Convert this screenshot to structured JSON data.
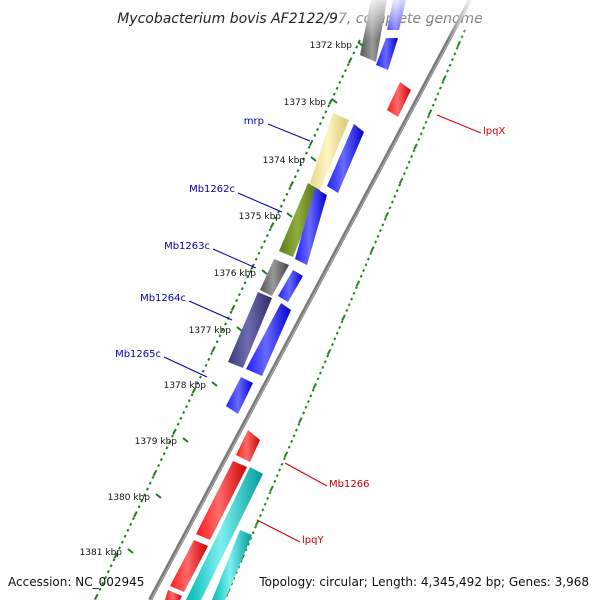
{
  "title": "Mycobacterium bovis AF2122/97, complete genome",
  "footer": {
    "accession": "Accession: NC_002945",
    "topology": "Topology: circular; Length: 4,345,492 bp; Genes: 3,968"
  },
  "colors": {
    "backbone": "#888888",
    "forward_label": "#cc0000",
    "reverse_label": "#0000aa",
    "gc_ticks": "#1f7a1f",
    "gc_ticks_right": "#1f8a1f"
  },
  "ticks": [
    {
      "label": "1372 kbp"
    },
    {
      "label": "1373 kbp"
    },
    {
      "label": "1374 kbp"
    },
    {
      "label": "1375 kbp"
    },
    {
      "label": "1376 kbp"
    },
    {
      "label": "1377 kbp"
    },
    {
      "label": "1378 kbp"
    },
    {
      "label": "1379 kbp"
    },
    {
      "label": "1380 kbp"
    },
    {
      "label": "1381 kbp"
    }
  ],
  "gene_labels": [
    {
      "text": "mrp",
      "strand": "reverse"
    },
    {
      "text": "Mb1262c",
      "strand": "reverse"
    },
    {
      "text": "Mb1263c",
      "strand": "reverse"
    },
    {
      "text": "Mb1264c",
      "strand": "reverse"
    },
    {
      "text": "Mb1265c",
      "strand": "reverse"
    },
    {
      "text": "lpqX",
      "strand": "forward"
    },
    {
      "text": "Mb1266",
      "strand": "forward"
    },
    {
      "text": "lpqY",
      "strand": "forward"
    }
  ]
}
